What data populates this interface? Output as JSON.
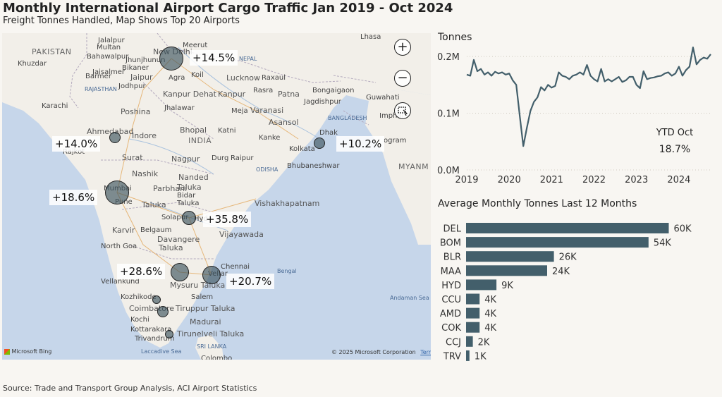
{
  "header": {
    "title": "Monthly International Airport Cargo Traffic Jan 2019 - Oct 2024",
    "subtitle": "Freight Tonnes Handled, Map Shows Top 20 Airports"
  },
  "source": "Source: Trade and Transport Group Analysis, ACI Airport Statistics",
  "colors": {
    "accent": "#435f6b",
    "bubble": "#3e5460",
    "water": "#c6d6ea",
    "land": "#f2efe9"
  },
  "map": {
    "places": [
      {
        "t": "PAKISTAN",
        "x": 42,
        "y": 20,
        "c": "country"
      },
      {
        "t": "Khuzdar",
        "x": 22,
        "y": 38
      },
      {
        "t": "Karachi",
        "x": 56,
        "y": 98
      },
      {
        "t": "Jalalpur",
        "x": 136,
        "y": 5
      },
      {
        "t": "Multan",
        "x": 134,
        "y": 15
      },
      {
        "t": "Bahawalpur",
        "x": 120,
        "y": 28
      },
      {
        "t": "Jaisalmer",
        "x": 128,
        "y": 50
      },
      {
        "t": "Bikaner",
        "x": 170,
        "y": 44
      },
      {
        "t": "Jhunjhunun",
        "x": 175,
        "y": 33
      },
      {
        "t": "New Delhi",
        "x": 214,
        "y": 20,
        "c": "big"
      },
      {
        "t": "Meerut",
        "x": 256,
        "y": 12
      },
      {
        "t": "Jaipur",
        "x": 182,
        "y": 56,
        "c": "big"
      },
      {
        "t": "Agra",
        "x": 236,
        "y": 58
      },
      {
        "t": "Koil",
        "x": 268,
        "y": 54
      },
      {
        "t": "Barmer",
        "x": 118,
        "y": 56
      },
      {
        "t": "Jodhpur",
        "x": 165,
        "y": 70
      },
      {
        "t": "RAJASTHAN",
        "x": 117,
        "y": 75,
        "c": "sea"
      },
      {
        "t": "Lucknow",
        "x": 318,
        "y": 57,
        "c": "big"
      },
      {
        "t": "NEPAL",
        "x": 336,
        "y": 32,
        "c": "sea"
      },
      {
        "t": "Lhasa",
        "x": 508,
        "y": 0
      },
      {
        "t": "Kanpur Dehat",
        "x": 228,
        "y": 80,
        "c": "big"
      },
      {
        "t": "Kanpur",
        "x": 306,
        "y": 80,
        "c": "big"
      },
      {
        "t": "Raxaul",
        "x": 368,
        "y": 58
      },
      {
        "t": "Rasra",
        "x": 356,
        "y": 76
      },
      {
        "t": "Patna",
        "x": 391,
        "y": 80,
        "c": "big"
      },
      {
        "t": "Bongaigaon",
        "x": 440,
        "y": 76
      },
      {
        "t": "Guwahati",
        "x": 516,
        "y": 86
      },
      {
        "t": "Imphal",
        "x": 535,
        "y": 112
      },
      {
        "t": "Jagdishpur",
        "x": 428,
        "y": 92
      },
      {
        "t": "Poshina",
        "x": 168,
        "y": 105,
        "c": "big"
      },
      {
        "t": "Jhalawar",
        "x": 230,
        "y": 101
      },
      {
        "t": "Meja",
        "x": 325,
        "y": 105
      },
      {
        "t": "Varanasi",
        "x": 352,
        "y": 103,
        "c": "big"
      },
      {
        "t": "BANGLADESH",
        "x": 462,
        "y": 116,
        "c": "sea"
      },
      {
        "t": "Asansol",
        "x": 378,
        "y": 120,
        "c": "big"
      },
      {
        "t": "Ahmedabad",
        "x": 120,
        "y": 133,
        "c": "big"
      },
      {
        "t": "Indore",
        "x": 184,
        "y": 139,
        "c": "big"
      },
      {
        "t": "Bhopal",
        "x": 252,
        "y": 131,
        "c": "big"
      },
      {
        "t": "Katni",
        "x": 306,
        "y": 133
      },
      {
        "t": "INDIA",
        "x": 264,
        "y": 146,
        "c": "country"
      },
      {
        "t": "Kanke",
        "x": 364,
        "y": 143
      },
      {
        "t": "Dhak",
        "x": 450,
        "y": 136
      },
      {
        "t": "Rajkot",
        "x": 86,
        "y": 163
      },
      {
        "t": "Surat",
        "x": 170,
        "y": 170,
        "c": "big"
      },
      {
        "t": "Nagpur",
        "x": 240,
        "y": 172,
        "c": "big"
      },
      {
        "t": "Durg",
        "x": 297,
        "y": 172
      },
      {
        "t": "Raipur",
        "x": 324,
        "y": 172
      },
      {
        "t": "Kolkata",
        "x": 407,
        "y": 159
      },
      {
        "t": "ogram",
        "x": 541,
        "y": 147
      },
      {
        "t": "Nashik",
        "x": 184,
        "y": 193,
        "c": "big"
      },
      {
        "t": "Nanded",
        "x": 250,
        "y": 198,
        "c": "big"
      },
      {
        "t": "ODISHA",
        "x": 360,
        "y": 189,
        "c": "sea"
      },
      {
        "t": "Bhubaneshwar",
        "x": 404,
        "y": 183
      },
      {
        "t": "MYANM",
        "x": 562,
        "y": 183,
        "c": "country"
      },
      {
        "t": "Mumbai",
        "x": 144,
        "y": 215
      },
      {
        "t": "Parbhani",
        "x": 214,
        "y": 214,
        "c": "big"
      },
      {
        "t": "Taluka",
        "x": 248,
        "y": 212,
        "c": "big"
      },
      {
        "t": "Pune",
        "x": 160,
        "y": 234
      },
      {
        "t": "Taluka",
        "x": 198,
        "y": 237,
        "c": "big"
      },
      {
        "t": "Bidar",
        "x": 248,
        "y": 225
      },
      {
        "t": "Taluka",
        "x": 248,
        "y": 236
      },
      {
        "t": "Vishakhapatnam",
        "x": 358,
        "y": 235,
        "c": "big"
      },
      {
        "t": "Solapur",
        "x": 226,
        "y": 256
      },
      {
        "t": "Hyd",
        "x": 272,
        "y": 258
      },
      {
        "t": "Vijayawada",
        "x": 308,
        "y": 279,
        "c": "big"
      },
      {
        "t": "Karvir",
        "x": 156,
        "y": 273,
        "c": "big"
      },
      {
        "t": "Belgaum",
        "x": 196,
        "y": 274
      },
      {
        "t": "North Goa",
        "x": 140,
        "y": 297
      },
      {
        "t": "Davangere",
        "x": 220,
        "y": 286,
        "c": "big"
      },
      {
        "t": "Taluka",
        "x": 222,
        "y": 298,
        "c": "big"
      },
      {
        "t": "Bengal",
        "x": 390,
        "y": 333,
        "c": "sea"
      },
      {
        "t": "Chennai",
        "x": 310,
        "y": 326
      },
      {
        "t": "Vellar",
        "x": 292,
        "y": 336
      },
      {
        "t": "Vellankund",
        "x": 140,
        "y": 347
      },
      {
        "t": "Mysuru Taluka",
        "x": 238,
        "y": 351,
        "c": "big"
      },
      {
        "t": "Kozhikode",
        "x": 168,
        "y": 369
      },
      {
        "t": "Salem",
        "x": 268,
        "y": 369
      },
      {
        "t": "Coimbatore",
        "x": 180,
        "y": 384,
        "c": "big"
      },
      {
        "t": "Tiruppur Taluka",
        "x": 246,
        "y": 384,
        "c": "big"
      },
      {
        "t": "Andaman Sea",
        "x": 550,
        "y": 371,
        "c": "sea"
      },
      {
        "t": "Kochi",
        "x": 182,
        "y": 401
      },
      {
        "t": "Madurai",
        "x": 266,
        "y": 403,
        "c": "big"
      },
      {
        "t": "Kottarakara",
        "x": 182,
        "y": 415
      },
      {
        "t": "Tirunelveli Taluka",
        "x": 248,
        "y": 420,
        "c": "big"
      },
      {
        "t": "Trivandrum",
        "x": 188,
        "y": 428
      },
      {
        "t": "SRI LANKA",
        "x": 276,
        "y": 440,
        "c": "sea"
      },
      {
        "t": "Laccadive Sea",
        "x": 197,
        "y": 447,
        "c": "sea"
      },
      {
        "t": "Colombo",
        "x": 282,
        "y": 456
      }
    ],
    "bubbles": [
      {
        "x": 240,
        "y": 36,
        "r": 17
      },
      {
        "x": 160,
        "y": 148,
        "r": 8
      },
      {
        "x": 163,
        "y": 226,
        "r": 17
      },
      {
        "x": 265,
        "y": 262,
        "r": 10
      },
      {
        "x": 450,
        "y": 156,
        "r": 8
      },
      {
        "x": 252,
        "y": 339,
        "r": 13
      },
      {
        "x": 297,
        "y": 343,
        "r": 13
      },
      {
        "x": 219,
        "y": 378,
        "r": 6
      },
      {
        "x": 228,
        "y": 395,
        "r": 8
      },
      {
        "x": 237,
        "y": 427,
        "r": 6
      }
    ],
    "labels": [
      {
        "t": "+14.5%",
        "x": 266,
        "y": 24
      },
      {
        "t": "+14.0%",
        "x": 71,
        "y": 146
      },
      {
        "t": "+10.2%",
        "x": 474,
        "y": 146
      },
      {
        "t": "+18.6%",
        "x": 67,
        "y": 222
      },
      {
        "t": "+35.8%",
        "x": 285,
        "y": 253
      },
      {
        "t": "+28.6%",
        "x": 163,
        "y": 327
      },
      {
        "t": "+20.7%",
        "x": 318,
        "y": 341
      }
    ],
    "zoom_in": "+",
    "zoom_out": "−",
    "attribution_left": "Microsoft Bing",
    "attribution_right": "© 2025 Microsoft Corporation",
    "terms": "Terms"
  },
  "chart_data": [
    {
      "type": "line",
      "title": "Tonnes",
      "y_ticks": [
        "0.0M",
        "0.1M",
        "0.2M"
      ],
      "y_tick_values": [
        0,
        100000,
        200000
      ],
      "ylim": [
        0,
        215000
      ],
      "x_ticks": [
        "2019",
        "2020",
        "2021",
        "2022",
        "2023",
        "2024"
      ],
      "x_tick_years": [
        2019,
        2020,
        2021,
        2022,
        2023,
        2024
      ],
      "x_start": "2019-01",
      "x_end": "2024-10",
      "series": [
        {
          "values": [
            168000,
            166000,
            194000,
            174000,
            178000,
            168000,
            172000,
            166000,
            173000,
            170000,
            172000,
            168000,
            170000,
            158000,
            150000,
            95000,
            42000,
            74000,
            104000,
            120000,
            128000,
            146000,
            140000,
            150000,
            145000,
            148000,
            172000,
            166000,
            164000,
            160000,
            166000,
            168000,
            172000,
            168000,
            185000,
            166000,
            160000,
            156000,
            178000,
            156000,
            160000,
            156000,
            160000,
            164000,
            155000,
            158000,
            164000,
            164000,
            150000,
            144000,
            174000,
            160000,
            162000,
            163000,
            165000,
            166000,
            170000,
            172000,
            166000,
            170000,
            182000,
            166000,
            176000,
            182000,
            216000,
            186000,
            194000,
            198000,
            196000,
            204000
          ]
        }
      ],
      "annotation_label": "YTD Oct",
      "annotation_value": "18.7%"
    },
    {
      "type": "bar",
      "title": "Average Monthly Tonnes Last 12 Months",
      "categories": [
        "DEL",
        "BOM",
        "BLR",
        "MAA",
        "HYD",
        "CCU",
        "AMD",
        "COK",
        "CCJ",
        "TRV"
      ],
      "values": [
        60000,
        54000,
        26000,
        24000,
        9000,
        4000,
        4000,
        4000,
        2000,
        1000
      ],
      "labels": [
        "60K",
        "54K",
        "26K",
        "24K",
        "9K",
        "4K",
        "4K",
        "4K",
        "2K",
        "1K"
      ],
      "xlim": [
        0,
        70000
      ]
    }
  ]
}
